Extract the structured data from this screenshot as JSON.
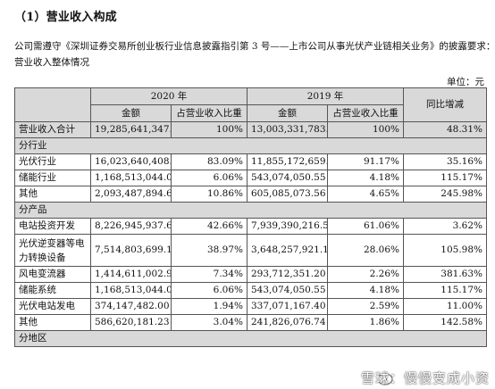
{
  "heading": "（1）营业收入构成",
  "intro_line1": "公司需遵守《深圳证券交易所创业板行业信息披露指引第 3 号——上市公司从事光伏产业链相关业务》的披露要求：",
  "intro_line2": "营业收入整体情况",
  "unit": "单位：元",
  "table": {
    "year_2020": "2020 年",
    "year_2019": "2019 年",
    "yoy_header": "同比增减",
    "amount_header": "金额",
    "share_header": "占营业收入比重",
    "rows": [
      {
        "kind": "total",
        "name": "营业收入合计",
        "a2020": "19,285,641,347.02",
        "s2020": "100%",
        "a2019": "13,003,331,783.65",
        "s2019": "100%",
        "yoy": "48.31%"
      },
      {
        "kind": "section",
        "name": "分行业"
      },
      {
        "kind": "row",
        "name": "光伏行业",
        "a2020": "16,023,640,408.32",
        "s2020": "83.09%",
        "a2019": "11,855,172,659.54",
        "s2019": "91.17%",
        "yoy": "35.16%"
      },
      {
        "kind": "row",
        "name": "储能行业",
        "a2020": "1,168,513,044.05",
        "s2020": "6.06%",
        "a2019": "543,074,050.55",
        "s2019": "4.18%",
        "yoy": "115.17%"
      },
      {
        "kind": "row",
        "name": "其他",
        "a2020": "2,093,487,894.65",
        "s2020": "10.86%",
        "a2019": "605,085,073.56",
        "s2019": "4.65%",
        "yoy": "245.98%"
      },
      {
        "kind": "section",
        "name": "分产品"
      },
      {
        "kind": "row",
        "name": "电站投资开发",
        "a2020": "8,226,945,937.60",
        "s2020": "42.66%",
        "a2019": "7,939,390,216.59",
        "s2019": "61.06%",
        "yoy": "3.62%"
      },
      {
        "kind": "tall",
        "name": "光伏逆变器等电力转换设备",
        "a2020": "7,514,803,699.19",
        "s2020": "38.97%",
        "a2019": "3,648,257,921.17",
        "s2019": "28.06%",
        "yoy": "105.98%"
      },
      {
        "kind": "row",
        "name": "风电变流器",
        "a2020": "1,414,611,002.95",
        "s2020": "7.34%",
        "a2019": "293,712,351.20",
        "s2019": "2.26%",
        "yoy": "381.63%"
      },
      {
        "kind": "row",
        "name": "储能系统",
        "a2020": "1,168,513,044.05",
        "s2020": "6.06%",
        "a2019": "543,074,050.55",
        "s2019": "4.18%",
        "yoy": "115.17%"
      },
      {
        "kind": "row",
        "name": "光伏电站发电",
        "a2020": "374,147,482.00",
        "s2020": "1.94%",
        "a2019": "337,071,167.40",
        "s2019": "2.59%",
        "yoy": "11.00%"
      },
      {
        "kind": "row",
        "name": "其他",
        "a2020": "586,620,181.23",
        "s2020": "3.04%",
        "a2019": "241,826,076.74",
        "s2019": "1.86%",
        "yoy": "142.58%"
      },
      {
        "kind": "section",
        "name": "分地区"
      }
    ]
  },
  "watermark": "雪球：慢慢变成小资",
  "colors": {
    "header_bg": "#d9d9d9",
    "border": "#555555"
  }
}
